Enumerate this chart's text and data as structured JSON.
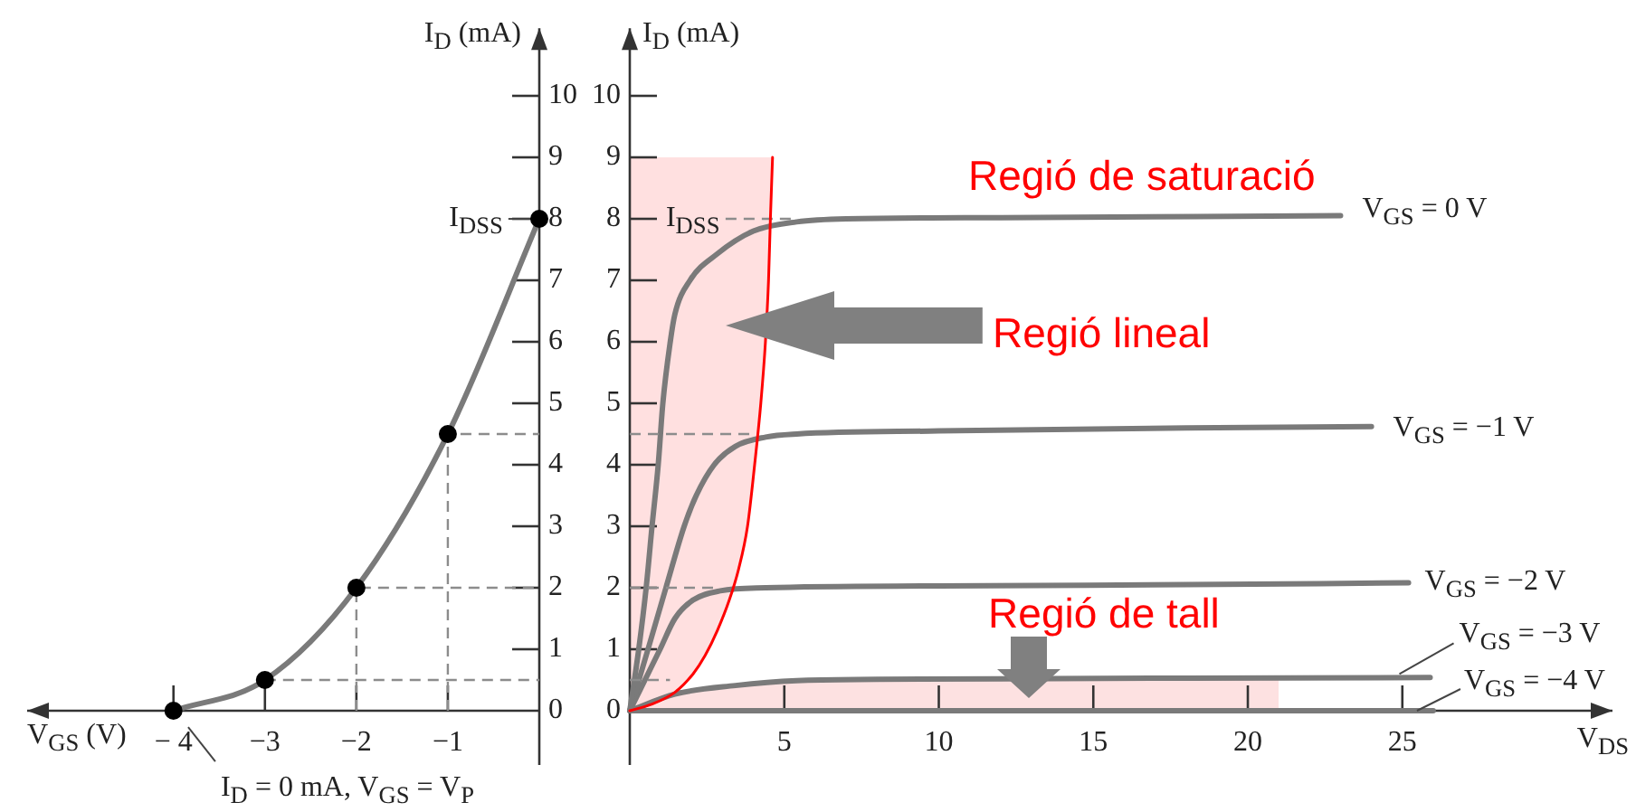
{
  "chart_data": [
    {
      "type": "line",
      "xlabel": "V$_{GS}$ (V)",
      "ylabel": "I$_{D}$ (mA)",
      "xlim": [
        -5.6,
        0
      ],
      "ylim": [
        0,
        11.1
      ],
      "xticks": [
        {
          "value": -4,
          "label": "− 4"
        },
        {
          "value": -3,
          "label": "−3"
        },
        {
          "value": -2,
          "label": "−2"
        },
        {
          "value": -1,
          "label": "−1"
        }
      ],
      "yticks": [
        0,
        1,
        2,
        3,
        4,
        5,
        6,
        7,
        8,
        9,
        10
      ],
      "grid": false,
      "legend": false,
      "marker": "circle",
      "series": [
        {
          "color": "#7a7a7a",
          "marker": "none",
          "x": [
            -4,
            -3,
            -2,
            -1,
            0
          ],
          "values": [
            0,
            0.5,
            2,
            4.5,
            8
          ]
        },
        {
          "type": "scatter",
          "color": "#000000",
          "x": [
            -4,
            -3,
            -2,
            -1,
            0
          ],
          "values": [
            0,
            0.5,
            2,
            4.5,
            8
          ]
        },
        {
          "color": "#8c8c8c",
          "marker": "none",
          "line_style": "dashed",
          "x": [
            -1,
            -1,
            0
          ],
          "values": [
            0,
            4.5,
            4.5
          ]
        },
        {
          "color": "#8c8c8c",
          "marker": "none",
          "line_style": "dashed",
          "x": [
            -2,
            -2,
            0
          ],
          "values": [
            0,
            2,
            2
          ]
        },
        {
          "color": "#8c8c8c",
          "marker": "none",
          "line_style": "dashed",
          "x": [
            -3,
            0
          ],
          "values": [
            0.5,
            0.5
          ]
        }
      ],
      "annotations": [
        "I$_{DSS}$",
        "I$_{D}$ = 0 mA, V$_{GS}$ = V$_{P}$"
      ]
    },
    {
      "type": "line",
      "xlabel": "V$_{DS}$",
      "ylabel": "I$_{D}$ (mA)",
      "xlim": [
        0,
        31.8
      ],
      "ylim": [
        0,
        11.1
      ],
      "xticks": [
        5,
        10,
        15,
        20,
        25
      ],
      "yticks": [
        0,
        1,
        2,
        3,
        4,
        5,
        6,
        7,
        8,
        9,
        10
      ],
      "grid": false,
      "legend": false,
      "series": [
        {
          "type": "area",
          "color": "#fde1e1",
          "x": [
            0,
            1.46,
            3.42,
            5.4,
            21
          ],
          "values": [
            0,
            0.27,
            0.41,
            0.49,
            0.5
          ]
        },
        {
          "color": "#ff0000",
          "x": [
            0,
            0.68,
            1.46,
            2.05,
            2.44,
            2.83,
            3.22,
            3.52,
            3.81,
            4.04,
            4.24,
            4.39,
            4.49,
            4.55,
            4.62
          ],
          "values": [
            0,
            0.1,
            0.3,
            0.6,
            0.9,
            1.3,
            1.8,
            2.3,
            3,
            4,
            5,
            6,
            7,
            8,
            9
          ],
          "lower": [
            0,
            0.1,
            0.3,
            0.6,
            0.9,
            1.3,
            1.8,
            2.3,
            3,
            4,
            5,
            6,
            7,
            8,
            9
          ],
          "upper": [
            9,
            9,
            9,
            9,
            9,
            9,
            9,
            9,
            9,
            9,
            9,
            9,
            9,
            9,
            9
          ]
        },
        {
          "color": "#8c8c8c",
          "line_style": "dashed",
          "x": [
            3.1,
            5.4
          ],
          "values": [
            8,
            8
          ]
        },
        {
          "color": "#8c8c8c",
          "line_style": "dashed",
          "x": [
            0,
            4
          ],
          "values": [
            4.5,
            4.5
          ]
        },
        {
          "color": "#8c8c8c",
          "line_style": "dashed",
          "x": [
            0,
            2.8
          ],
          "values": [
            2,
            2
          ]
        },
        {
          "color": "#8c8c8c",
          "line_style": "dashed",
          "x": [
            0,
            1.3
          ],
          "values": [
            0.5,
            0.5
          ]
        },
        {
          "name": "V$_{GS}$ = 0 V",
          "color": "#7a7a7a",
          "x": [
            0,
            0.29,
            0.53,
            0.72,
            0.92,
            1.07,
            1.31,
            1.46,
            1.95,
            2.83,
            4,
            5.4,
            7,
            12,
            23
          ],
          "values": [
            0,
            1,
            2,
            3,
            4,
            5,
            6,
            6.45,
            7,
            7.43,
            7.8,
            7.95,
            8,
            8.02,
            8.05
          ]
        },
        {
          "name": "V$_{GS}$ = −1 V",
          "color": "#7a7a7a",
          "x": [
            0,
            0.59,
            1.17,
            1.76,
            2.15,
            2.73,
            3.42,
            4.4,
            5.4,
            10,
            18,
            24
          ],
          "values": [
            0,
            1,
            2,
            3,
            3.5,
            4,
            4.3,
            4.45,
            4.5,
            4.55,
            4.6,
            4.62
          ]
        },
        {
          "name": "V$_{GS}$ = −2 V",
          "color": "#7a7a7a",
          "x": [
            0,
            0.98,
            1.46,
            2.05,
            2.93,
            4.4,
            10,
            18,
            25.2
          ],
          "values": [
            0,
            1,
            1.5,
            1.8,
            1.95,
            2,
            2.03,
            2.05,
            2.08
          ]
        },
        {
          "name": "V$_{GS}$ = −3 V",
          "color": "#7a7a7a",
          "x": [
            0,
            1.46,
            3.42,
            5.4,
            8,
            12,
            18,
            25.9
          ],
          "values": [
            0,
            0.27,
            0.41,
            0.49,
            0.51,
            0.52,
            0.53,
            0.54
          ]
        },
        {
          "name": "V$_{GS}$ = −4 V",
          "color": "#7a7a7a",
          "x": [
            0,
            26
          ],
          "values": [
            0,
            0
          ]
        }
      ],
      "annotations": [
        "I$_{DSS}$",
        "Regió de saturació",
        "Regió lineal",
        "Regió de tall"
      ]
    }
  ]
}
